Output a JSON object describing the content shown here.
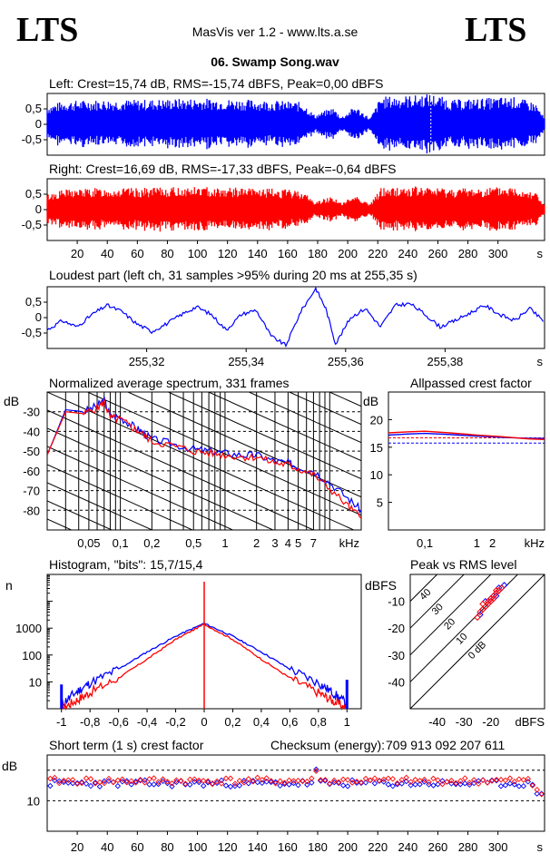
{
  "header": {
    "logo_left": "LTS",
    "logo_right": "LTS",
    "app_title": "MasVis ver 1.2 - www.lts.a.se",
    "file_title": "06. Swamp Song.wav"
  },
  "colors": {
    "left": "#0000ff",
    "right": "#ff0000",
    "grid": "#000000",
    "axis": "#000000"
  },
  "chart_data": [
    {
      "id": "left_waveform",
      "type": "area",
      "title": "Left: Crest=15,74 dB, RMS=-15,74 dBFS, Peak=0,00 dBFS",
      "ylim": [
        -1,
        1
      ],
      "yticks": [
        "0,5",
        "0",
        "-0,5"
      ],
      "xlim": [
        0,
        331
      ],
      "envelope": [
        {
          "t": 0,
          "v": 0.6
        },
        {
          "t": 10,
          "v": 0.75
        },
        {
          "t": 30,
          "v": 0.8
        },
        {
          "t": 60,
          "v": 0.8
        },
        {
          "t": 100,
          "v": 0.85
        },
        {
          "t": 150,
          "v": 0.78
        },
        {
          "t": 170,
          "v": 0.72
        },
        {
          "t": 178,
          "v": 0.3
        },
        {
          "t": 190,
          "v": 0.55
        },
        {
          "t": 196,
          "v": 0.25
        },
        {
          "t": 205,
          "v": 0.6
        },
        {
          "t": 215,
          "v": 0.2
        },
        {
          "t": 222,
          "v": 0.9
        },
        {
          "t": 245,
          "v": 0.95
        },
        {
          "t": 255,
          "v": 1.0
        },
        {
          "t": 270,
          "v": 0.8
        },
        {
          "t": 290,
          "v": 0.85
        },
        {
          "t": 310,
          "v": 0.9
        },
        {
          "t": 325,
          "v": 0.7
        },
        {
          "t": 331,
          "v": 0.2
        }
      ],
      "marker_time": 255.35
    },
    {
      "id": "right_waveform",
      "type": "area",
      "title": "Right: Crest=16,69 dB, RMS=-17,33 dBFS, Peak=-0,64 dBFS",
      "ylim": [
        -1,
        1
      ],
      "yticks": [
        "0,5",
        "0",
        "-0,5"
      ],
      "xlim": [
        0,
        331
      ],
      "xticks": [
        20,
        40,
        60,
        80,
        100,
        120,
        140,
        160,
        180,
        200,
        220,
        240,
        260,
        280,
        300
      ],
      "xunit": "s",
      "envelope": [
        {
          "t": 0,
          "v": 0.5
        },
        {
          "t": 10,
          "v": 0.65
        },
        {
          "t": 30,
          "v": 0.7
        },
        {
          "t": 60,
          "v": 0.7
        },
        {
          "t": 100,
          "v": 0.75
        },
        {
          "t": 150,
          "v": 0.68
        },
        {
          "t": 170,
          "v": 0.62
        },
        {
          "t": 178,
          "v": 0.25
        },
        {
          "t": 190,
          "v": 0.45
        },
        {
          "t": 196,
          "v": 0.2
        },
        {
          "t": 205,
          "v": 0.5
        },
        {
          "t": 215,
          "v": 0.18
        },
        {
          "t": 222,
          "v": 0.72
        },
        {
          "t": 245,
          "v": 0.75
        },
        {
          "t": 270,
          "v": 0.7
        },
        {
          "t": 290,
          "v": 0.72
        },
        {
          "t": 310,
          "v": 0.75
        },
        {
          "t": 325,
          "v": 0.6
        },
        {
          "t": 331,
          "v": 0.15
        }
      ]
    },
    {
      "id": "loudest_part",
      "type": "line",
      "title": "Loudest part (left  ch, 31 samples >95% during 20 ms at 255,35 s)",
      "ylim": [
        -1,
        1
      ],
      "yticks": [
        "0,5",
        "0",
        "-0,5"
      ],
      "xlim": [
        255.3,
        255.4
      ],
      "xticks": [
        "255,32",
        "255,34",
        "255,36",
        "255,38"
      ],
      "xunit": "s",
      "points": [
        [
          255.3,
          -0.4
        ],
        [
          255.303,
          -0.1
        ],
        [
          255.306,
          -0.3
        ],
        [
          255.309,
          0.1
        ],
        [
          255.312,
          0.4
        ],
        [
          255.315,
          0.2
        ],
        [
          255.318,
          -0.2
        ],
        [
          255.321,
          -0.45
        ],
        [
          255.324,
          -0.2
        ],
        [
          255.327,
          0.1
        ],
        [
          255.33,
          0.35
        ],
        [
          255.333,
          0.1
        ],
        [
          255.336,
          -0.4
        ],
        [
          255.339,
          0.1
        ],
        [
          255.342,
          0.25
        ],
        [
          255.345,
          -0.6
        ],
        [
          255.348,
          -0.9
        ],
        [
          255.351,
          0.2
        ],
        [
          255.354,
          0.95
        ],
        [
          255.356,
          0.3
        ],
        [
          255.358,
          -0.85
        ],
        [
          255.361,
          0.0
        ],
        [
          255.364,
          0.3
        ],
        [
          255.367,
          -0.3
        ],
        [
          255.37,
          0.4
        ],
        [
          255.373,
          0.45
        ],
        [
          255.376,
          0.1
        ],
        [
          255.379,
          -0.3
        ],
        [
          255.382,
          -0.1
        ],
        [
          255.385,
          0.15
        ],
        [
          255.388,
          0.4
        ],
        [
          255.391,
          0.1
        ],
        [
          255.394,
          -0.1
        ],
        [
          255.397,
          0.3
        ],
        [
          255.4,
          -0.15
        ]
      ]
    },
    {
      "id": "avg_spectrum",
      "type": "line",
      "title": "Normalized average spectrum, 331 frames",
      "ylabel": "dB",
      "ylim": [
        -90,
        -20
      ],
      "yticks": [
        "-30",
        "-40",
        "-50",
        "-60",
        "-70",
        "-80"
      ],
      "xscale": "log",
      "xlim": [
        0.02,
        20
      ],
      "xticks": [
        "0,05",
        "0,1",
        "0,2",
        "0,5",
        "1",
        "2",
        "3",
        "4",
        "5",
        "7"
      ],
      "xtick_values": [
        0.05,
        0.1,
        0.2,
        0.5,
        1,
        2,
        3,
        4,
        5,
        7
      ],
      "xunit": "kHz",
      "series": [
        {
          "name": "left",
          "points": [
            [
              0.02,
              -52
            ],
            [
              0.03,
              -29
            ],
            [
              0.045,
              -30
            ],
            [
              0.06,
              -27
            ],
            [
              0.07,
              -24
            ],
            [
              0.08,
              -32
            ],
            [
              0.1,
              -33
            ],
            [
              0.13,
              -37
            ],
            [
              0.16,
              -40
            ],
            [
              0.2,
              -44
            ],
            [
              0.3,
              -46
            ],
            [
              0.5,
              -49
            ],
            [
              0.7,
              -50
            ],
            [
              1,
              -51
            ],
            [
              1.5,
              -52
            ],
            [
              2,
              -52
            ],
            [
              3,
              -55
            ],
            [
              4,
              -56
            ],
            [
              5,
              -58
            ],
            [
              7,
              -60
            ],
            [
              10,
              -66
            ],
            [
              15,
              -74
            ],
            [
              20,
              -80
            ]
          ]
        },
        {
          "name": "right",
          "points": [
            [
              0.02,
              -52
            ],
            [
              0.03,
              -30
            ],
            [
              0.045,
              -31
            ],
            [
              0.06,
              -28
            ],
            [
              0.07,
              -25
            ],
            [
              0.08,
              -33
            ],
            [
              0.1,
              -34
            ],
            [
              0.13,
              -38
            ],
            [
              0.16,
              -41
            ],
            [
              0.2,
              -45
            ],
            [
              0.3,
              -47
            ],
            [
              0.5,
              -50
            ],
            [
              0.7,
              -51
            ],
            [
              1,
              -52
            ],
            [
              1.5,
              -53
            ],
            [
              2,
              -53
            ],
            [
              3,
              -56
            ],
            [
              4,
              -57
            ],
            [
              5,
              -59
            ],
            [
              7,
              -62
            ],
            [
              10,
              -69
            ],
            [
              15,
              -78
            ],
            [
              20,
              -84
            ]
          ]
        }
      ]
    },
    {
      "id": "allpassed_crest",
      "type": "line",
      "title": "Allpassed crest factor",
      "ylabel": "dB",
      "ylim": [
        0,
        25
      ],
      "yticks": [
        "20",
        "15",
        "10",
        "5"
      ],
      "xscale": "log",
      "xlim": [
        0.02,
        20
      ],
      "xticks": [
        "0,1",
        "1",
        "2",
        "kHz"
      ],
      "series": [
        {
          "name": "left",
          "points": [
            [
              0.02,
              17.2
            ],
            [
              0.05,
              17.4
            ],
            [
              0.1,
              17.5
            ],
            [
              0.3,
              17.3
            ],
            [
              1,
              17.0
            ],
            [
              3,
              16.8
            ],
            [
              10,
              16.6
            ],
            [
              20,
              16.6
            ]
          ]
        },
        {
          "name": "right",
          "points": [
            [
              0.02,
              17.6
            ],
            [
              0.05,
              17.8
            ],
            [
              0.1,
              17.9
            ],
            [
              0.3,
              17.6
            ],
            [
              1,
              17.2
            ],
            [
              3,
              16.9
            ],
            [
              10,
              16.5
            ],
            [
              20,
              16.4
            ]
          ]
        }
      ],
      "reference_lines": [
        {
          "name": "left_crest",
          "value": 15.74
        },
        {
          "name": "right_crest",
          "value": 16.69
        }
      ]
    },
    {
      "id": "histogram",
      "type": "line",
      "title": "Histogram, \"bits\": 15,7/15,4",
      "ylabel": "n",
      "yscale": "log",
      "ylim": [
        1,
        100000
      ],
      "yticks": [
        "1000",
        "100",
        "10"
      ],
      "xlim": [
        -1.1,
        1.1
      ],
      "xticks": [
        "-1",
        "-0,8",
        "-0,6",
        "-0,4",
        "-0,2",
        "0",
        "0,2",
        "0,4",
        "0,6",
        "0,8",
        "1"
      ],
      "series": [
        {
          "name": "left",
          "points": [
            [
              -1,
              1.5
            ],
            [
              -0.9,
              4
            ],
            [
              -0.8,
              9
            ],
            [
              -0.6,
              30
            ],
            [
              -0.4,
              130
            ],
            [
              -0.2,
              500
            ],
            [
              0,
              1500
            ],
            [
              0.2,
              500
            ],
            [
              0.4,
              130
            ],
            [
              0.6,
              30
            ],
            [
              0.8,
              9
            ],
            [
              0.9,
              4
            ],
            [
              1,
              1.5
            ]
          ]
        },
        {
          "name": "right",
          "points": [
            [
              -1,
              1
            ],
            [
              -0.9,
              2
            ],
            [
              -0.8,
              4
            ],
            [
              -0.6,
              14
            ],
            [
              -0.4,
              70
            ],
            [
              -0.2,
              380
            ],
            [
              0,
              1400
            ],
            [
              0.2,
              380
            ],
            [
              0.4,
              70
            ],
            [
              0.6,
              14
            ],
            [
              0.8,
              4
            ],
            [
              0.9,
              2
            ],
            [
              1,
              1
            ]
          ]
        }
      ]
    },
    {
      "id": "peak_vs_rms",
      "type": "scatter",
      "title": "Peak vs RMS level",
      "ylabel": "dBFS",
      "xunit": "dBFS",
      "ylim": [
        -50,
        0
      ],
      "xlim": [
        -50,
        0
      ],
      "yticks": [
        "-10",
        "-20",
        "-30",
        "-40"
      ],
      "xticks": [
        "-40",
        "-30",
        "-20"
      ],
      "crest_labels": [
        "40",
        "30",
        "20",
        "10",
        "0 dB"
      ],
      "series": [
        {
          "name": "left",
          "points": [
            [
              -22,
              -12
            ],
            [
              -20,
              -10
            ],
            [
              -18,
              -8
            ],
            [
              -17,
              -6
            ],
            [
              -19,
              -9
            ],
            [
              -21,
              -11
            ],
            [
              -16,
              -5
            ],
            [
              -23,
              -13
            ],
            [
              -18,
              -7
            ],
            [
              -15,
              -4
            ],
            [
              -20,
              -9
            ],
            [
              -19,
              -8
            ],
            [
              -17,
              -5
            ],
            [
              -24,
              -15
            ],
            [
              -22,
              -10
            ]
          ]
        },
        {
          "name": "right",
          "points": [
            [
              -23,
              -13
            ],
            [
              -21,
              -11
            ],
            [
              -19,
              -9
            ],
            [
              -18,
              -7
            ],
            [
              -20,
              -10
            ],
            [
              -22,
              -12
            ],
            [
              -17,
              -6
            ],
            [
              -24,
              -14
            ],
            [
              -19,
              -8
            ],
            [
              -16,
              -5
            ],
            [
              -21,
              -10
            ],
            [
              -20,
              -9
            ],
            [
              -18,
              -6
            ],
            [
              -25,
              -16
            ],
            [
              -23,
              -11
            ]
          ]
        }
      ]
    },
    {
      "id": "short_term_crest",
      "type": "scatter",
      "title": "Short term (1 s) crest factor",
      "checksum_label": "Checksum (energy):",
      "checksum_value": "709 913 092 207 611",
      "ylabel": "dB",
      "ylim": [
        0,
        25
      ],
      "yticks": [
        "10"
      ],
      "xlim": [
        0,
        331
      ],
      "xticks": [
        20,
        40,
        60,
        80,
        100,
        120,
        140,
        160,
        180,
        200,
        220,
        240,
        260,
        280,
        300
      ],
      "xunit": "s",
      "series": [
        {
          "name": "left",
          "mean": 15.7
        },
        {
          "name": "right",
          "mean": 16.5
        }
      ],
      "reference_lines": [
        10,
        20
      ]
    }
  ]
}
